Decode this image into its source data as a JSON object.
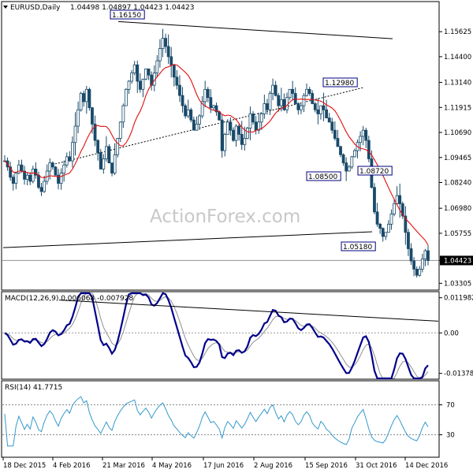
{
  "header": {
    "symbol_label": "EURUSD,Daily",
    "ohlc": "1.04498 1.04897 1.04423 1.04423",
    "watermark": "ActionForex.com"
  },
  "chart_data": [
    {
      "type": "candlestick",
      "panel": "price",
      "y_ticks": [
        "1.15625",
        "1.14400",
        "1.13140",
        "1.11915",
        "1.10690",
        "1.09465",
        "1.08240",
        "1.06980",
        "1.05755",
        "1.04423",
        "1.03305"
      ],
      "y_tick_values": [
        1.15625,
        1.144,
        1.1314,
        1.11915,
        1.1069,
        1.09465,
        1.0824,
        1.0698,
        1.05755,
        1.04423,
        1.03305
      ],
      "ylim": [
        1.0305,
        1.1702
      ],
      "x_ticks": [
        "18 Dec 2015",
        "4 Feb 2016",
        "21 Mar 2016",
        "4 May 2016",
        "17 Jun 2016",
        "2 Aug 2016",
        "15 Sep 2016",
        "31 Oct 2016",
        "14 Dec 2016"
      ],
      "current_price": "1.04423",
      "close_series": [
        1.093,
        1.09,
        1.085,
        1.082,
        1.087,
        1.091,
        1.088,
        1.084,
        1.086,
        1.083,
        1.089,
        1.086,
        1.08,
        1.078,
        1.083,
        1.088,
        1.092,
        1.09,
        1.086,
        1.082,
        1.087,
        1.091,
        1.095,
        1.093,
        1.102,
        1.11,
        1.118,
        1.126,
        1.122,
        1.128,
        1.119,
        1.111,
        1.103,
        1.097,
        1.089,
        1.094,
        1.1,
        1.092,
        1.087,
        1.096,
        1.104,
        1.112,
        1.12,
        1.128,
        1.132,
        1.136,
        1.14,
        1.132,
        1.128,
        1.133,
        1.138,
        1.135,
        1.13,
        1.136,
        1.142,
        1.148,
        1.153,
        1.149,
        1.144,
        1.14,
        1.134,
        1.13,
        1.125,
        1.12,
        1.115,
        1.118,
        1.113,
        1.108,
        1.111,
        1.115,
        1.122,
        1.128,
        1.124,
        1.119,
        1.12,
        1.117,
        1.113,
        1.098,
        1.106,
        1.112,
        1.108,
        1.103,
        1.11,
        1.106,
        1.101,
        1.104,
        1.109,
        1.116,
        1.112,
        1.108,
        1.112,
        1.116,
        1.121,
        1.118,
        1.126,
        1.13,
        1.125,
        1.12,
        1.123,
        1.118,
        1.124,
        1.128,
        1.126,
        1.121,
        1.118,
        1.12,
        1.125,
        1.128,
        1.126,
        1.121,
        1.118,
        1.116,
        1.12,
        1.118,
        1.114,
        1.112,
        1.108,
        1.104,
        1.1,
        1.096,
        1.092,
        1.088,
        1.09,
        1.095,
        1.098,
        1.102,
        1.105,
        1.108,
        1.103,
        1.094,
        1.08,
        1.068,
        1.062,
        1.06,
        1.056,
        1.058,
        1.062,
        1.067,
        1.072,
        1.076,
        1.072,
        1.066,
        1.058,
        1.05,
        1.044,
        1.04,
        1.037,
        1.04,
        1.045,
        1.049,
        1.0442
      ],
      "annotations": [
        {
          "label": "1.16150",
          "value": 1.1615
        },
        {
          "label": "1.12980",
          "value": 1.1298
        },
        {
          "label": "1.08500",
          "value": 1.085
        },
        {
          "label": "1.08720",
          "value": 1.0872
        },
        {
          "label": "1.05180",
          "value": 1.0518
        }
      ]
    },
    {
      "type": "line",
      "panel": "macd",
      "title": "MACD(12,26,9) 0.006068 -0.007928",
      "y_ticks": [
        "0.011982",
        "0.00",
        "-0.013788"
      ],
      "y_tick_values": [
        0.011982,
        0.0,
        -0.013788
      ],
      "ylim": [
        -0.0155,
        0.0135
      ]
    },
    {
      "type": "line",
      "panel": "rsi",
      "title": "RSI(14) 41.7715",
      "y_ticks": [
        "70",
        "30"
      ],
      "y_tick_values": [
        70,
        30
      ],
      "ylim": [
        0,
        100
      ]
    }
  ],
  "colors": {
    "candles": "#1a4a6a",
    "ma": "#e01010",
    "macd": "#00008b",
    "signal": "#909090",
    "rsi": "#3399cc",
    "trend": "#000000"
  }
}
